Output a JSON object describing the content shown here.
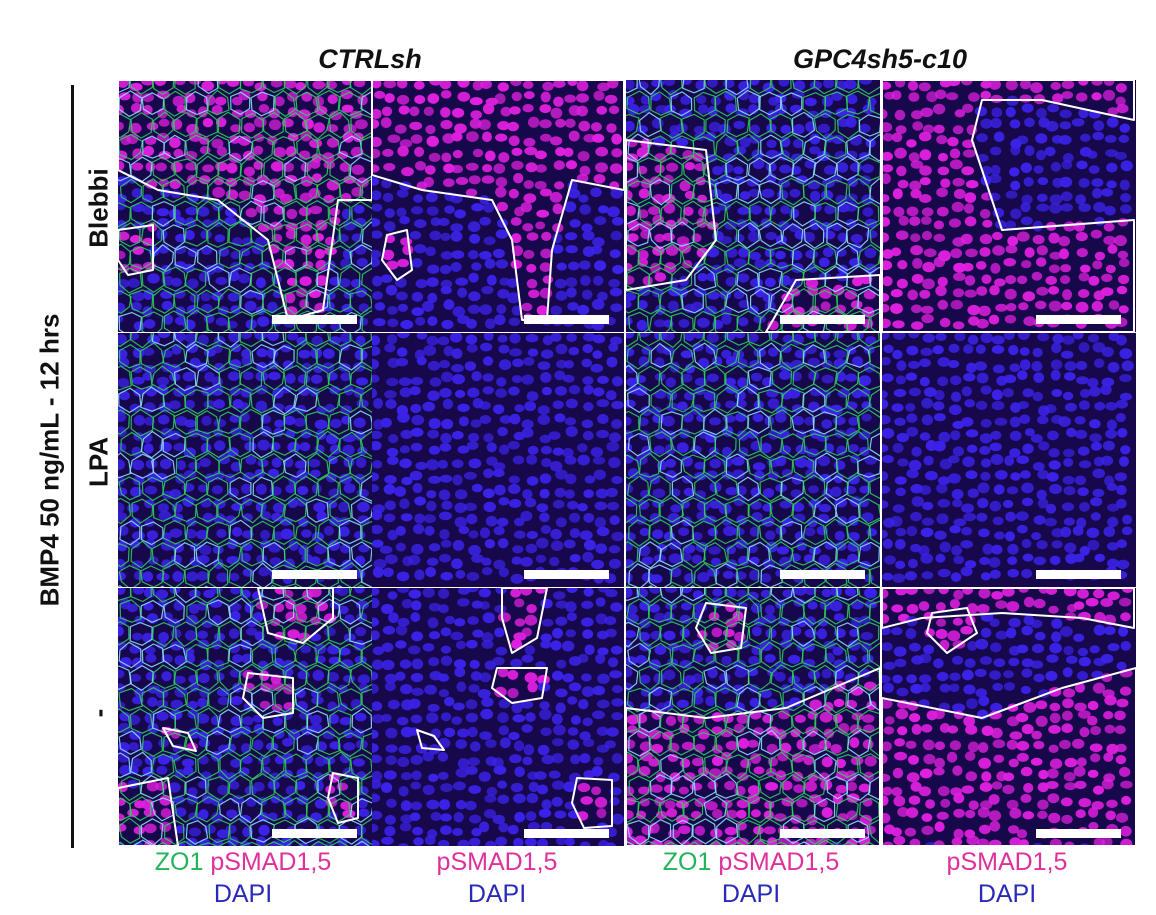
{
  "groups": {
    "ctrl": "CTRLsh",
    "gpc4": "GPC4sh5-c10"
  },
  "side_title": "BMP4 50 ng/mL - 12 hrs",
  "rows": {
    "blebbi": "Blebbi",
    "lpa": "LPA",
    "none": "-"
  },
  "captions": {
    "zo1": "ZO1",
    "psmad": "pSMAD1,5",
    "dapi": "DAPI"
  },
  "colors": {
    "zo1": "#22b45a",
    "psmad": "#e0309c",
    "dapi": "#2a2ab8",
    "nucleus_blue": "#3b22e8",
    "nucleus_magenta": "#e020e0"
  }
}
